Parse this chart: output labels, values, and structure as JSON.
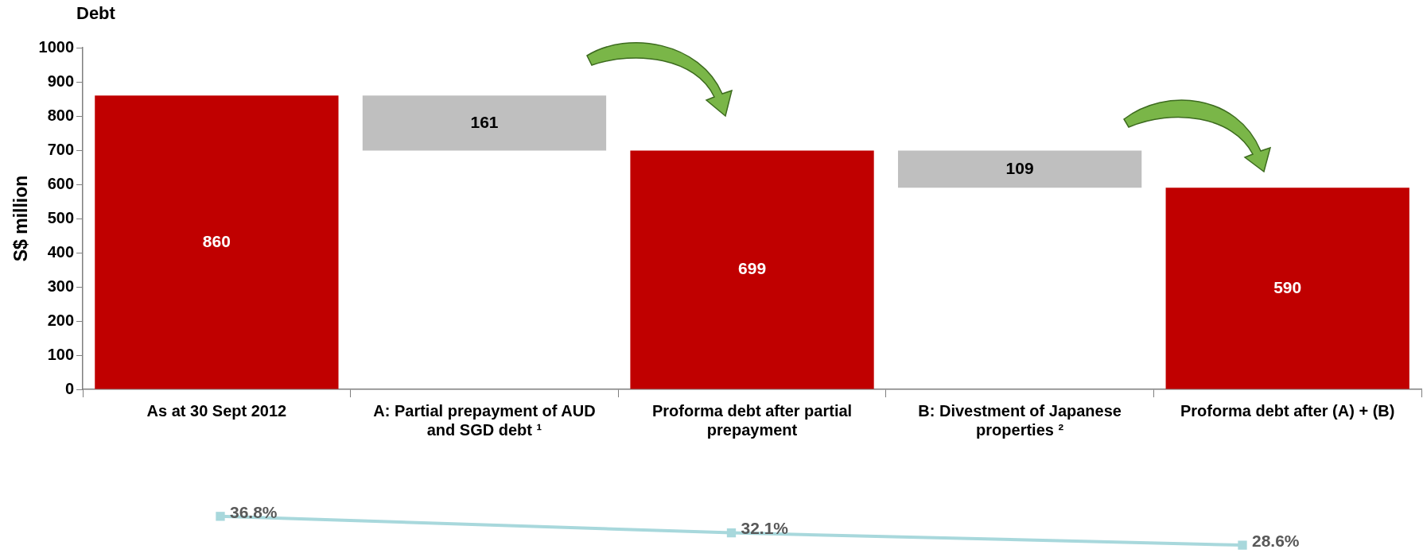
{
  "chart_data": [
    {
      "type": "bar",
      "title": "Debt",
      "ylabel": "S$ million",
      "categories": [
        "As at 30 Sept 2012",
        "A: Partial prepayment of AUD and SGD debt ¹",
        "Proforma debt after partial prepayment",
        "B: Divestment of Japanese properties ²",
        "Proforma debt after (A) + (B)"
      ],
      "values": [
        860,
        161,
        699,
        109,
        590
      ],
      "base": [
        0,
        699,
        0,
        590,
        0
      ],
      "colors": [
        "#c00000",
        "#bfbfbf",
        "#c00000",
        "#bfbfbf",
        "#c00000"
      ],
      "ylim": [
        0,
        1000
      ],
      "yticks": [
        0,
        100,
        200,
        300,
        400,
        500,
        600,
        700,
        800,
        900,
        1000
      ],
      "data_labels": true,
      "grid": false,
      "legend": false
    },
    {
      "type": "line",
      "categories": [
        null,
        null,
        null
      ],
      "values": [
        36.8,
        32.1,
        28.6
      ],
      "value_labels": [
        "36.8%",
        "32.1%",
        "28.6%"
      ],
      "color": "#a8d8dc",
      "marker": "square",
      "tick_labels": false,
      "legend": false
    }
  ]
}
